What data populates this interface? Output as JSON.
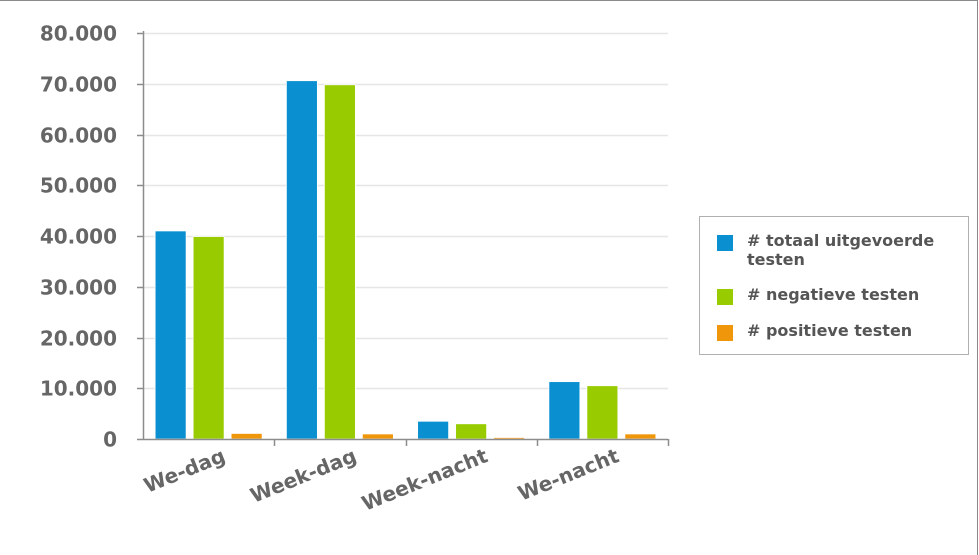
{
  "chart_data": {
    "type": "bar",
    "title": "",
    "xlabel": "",
    "ylabel": "",
    "categories": [
      "We-dag",
      "Week-dag",
      "Week-nacht",
      "We-nacht"
    ],
    "series": [
      {
        "name": "# totaal uitgevoerde testen",
        "color": "#0a8fd0",
        "values": [
          41000,
          70600,
          3500,
          11300
        ]
      },
      {
        "name": "# negatieve testen",
        "color": "#99cc00",
        "values": [
          39900,
          69800,
          3000,
          10500
        ]
      },
      {
        "name": "# positieve testen",
        "color": "#f0960a",
        "values": [
          1100,
          1000,
          300,
          1000
        ]
      }
    ],
    "ylim": [
      0,
      80000
    ],
    "y_ticks": [
      0,
      10000,
      20000,
      30000,
      40000,
      50000,
      60000,
      70000,
      80000
    ],
    "y_tick_labels": [
      "0",
      "10.000",
      "20.000",
      "30.000",
      "40.000",
      "50.000",
      "60.000",
      "70.000",
      "80.000"
    ],
    "grid": true,
    "legend_position": "right"
  }
}
